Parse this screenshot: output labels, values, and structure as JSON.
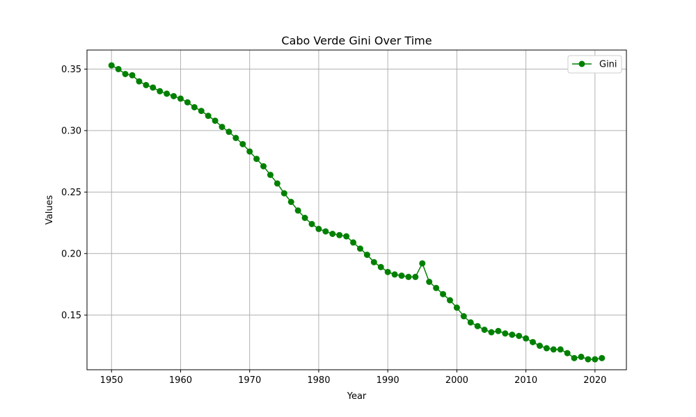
{
  "chart_data": {
    "type": "line",
    "title": "Cabo Verde Gini Over Time",
    "xlabel": "Year",
    "ylabel": "Values",
    "xlim": [
      1946.45,
      2024.55
    ],
    "ylim": [
      0.1055,
      0.3655
    ],
    "x_ticks": [
      1950,
      1960,
      1970,
      1980,
      1990,
      2000,
      2010,
      2020
    ],
    "y_ticks": [
      0.15,
      0.2,
      0.25,
      0.3,
      0.35
    ],
    "y_tick_labels": [
      "0.15",
      "0.20",
      "0.25",
      "0.30",
      "0.35"
    ],
    "grid": true,
    "legend_position": "top-right",
    "series": [
      {
        "name": "Gini",
        "color": "#008000",
        "marker": "circle",
        "x": [
          1950,
          1951,
          1952,
          1953,
          1954,
          1955,
          1956,
          1957,
          1958,
          1959,
          1960,
          1961,
          1962,
          1963,
          1964,
          1965,
          1966,
          1967,
          1968,
          1969,
          1970,
          1971,
          1972,
          1973,
          1974,
          1975,
          1976,
          1977,
          1978,
          1979,
          1980,
          1981,
          1982,
          1983,
          1984,
          1985,
          1986,
          1987,
          1988,
          1989,
          1990,
          1991,
          1992,
          1993,
          1994,
          1995,
          1996,
          1997,
          1998,
          1999,
          2000,
          2001,
          2002,
          2003,
          2004,
          2005,
          2006,
          2007,
          2008,
          2009,
          2010,
          2011,
          2012,
          2013,
          2014,
          2015,
          2016,
          2017,
          2018,
          2019,
          2020,
          2021
        ],
        "values": [
          0.353,
          0.35,
          0.346,
          0.345,
          0.34,
          0.337,
          0.335,
          0.332,
          0.33,
          0.328,
          0.326,
          0.323,
          0.319,
          0.316,
          0.312,
          0.308,
          0.303,
          0.299,
          0.294,
          0.289,
          0.283,
          0.277,
          0.271,
          0.264,
          0.257,
          0.249,
          0.242,
          0.235,
          0.229,
          0.224,
          0.22,
          0.218,
          0.216,
          0.215,
          0.214,
          0.209,
          0.204,
          0.199,
          0.193,
          0.189,
          0.185,
          0.183,
          0.182,
          0.181,
          0.181,
          0.192,
          0.177,
          0.172,
          0.167,
          0.162,
          0.156,
          0.149,
          0.144,
          0.141,
          0.138,
          0.136,
          0.137,
          0.135,
          0.134,
          0.133,
          0.131,
          0.128,
          0.125,
          0.123,
          0.122,
          0.122,
          0.119,
          0.115,
          0.116,
          0.114,
          0.114,
          0.115
        ]
      }
    ]
  }
}
